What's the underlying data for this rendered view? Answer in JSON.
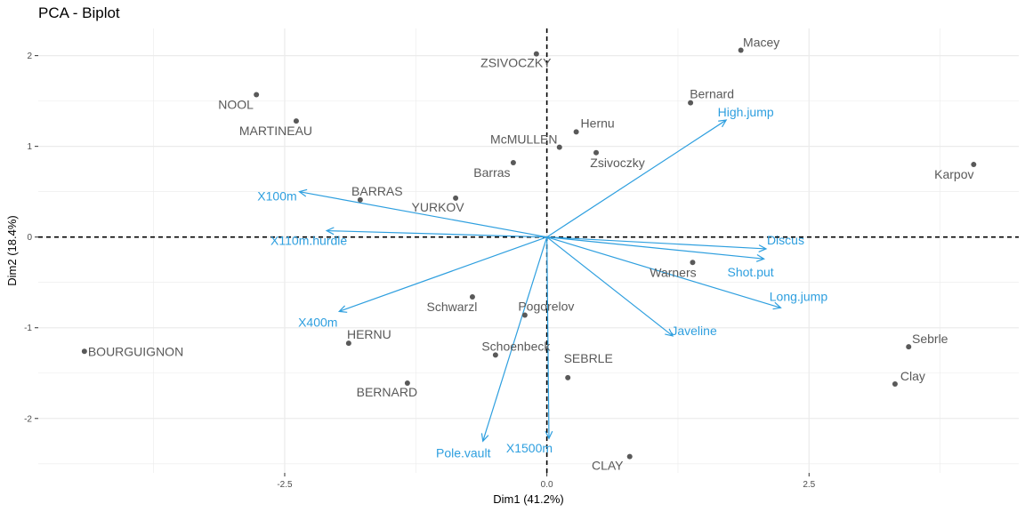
{
  "title": "PCA - Biplot",
  "chart_data": {
    "type": "scatter",
    "title": "PCA - Biplot",
    "xlabel": "Dim1 (41.2%)",
    "ylabel": "Dim2 (18.4%)",
    "xlim": [
      -4.85,
      4.5
    ],
    "ylim": [
      -2.6,
      2.3
    ],
    "x_ticks": [
      -2.5,
      0,
      2.5
    ],
    "x_tick_labels": [
      "-2.5",
      "0.0",
      "2.5"
    ],
    "y_ticks": [
      -2,
      -1,
      0,
      1,
      2
    ],
    "y_tick_labels": [
      "-2",
      "-1",
      "0",
      "1",
      "2"
    ],
    "grid": true,
    "colors": {
      "individuals": "#595959",
      "variables": "#2E9FDF",
      "reference_lines": "#000000",
      "grid": "#ebebeb"
    },
    "individuals": [
      {
        "name": "SEBRLE",
        "x": 0.2,
        "y": -1.55
      },
      {
        "name": "CLAY",
        "x": 0.79,
        "y": -2.42
      },
      {
        "name": "BERNARD",
        "x": -1.33,
        "y": -1.61
      },
      {
        "name": "YURKOV",
        "x": -0.87,
        "y": 0.43
      },
      {
        "name": "ZSIVOCZKY",
        "x": -0.1,
        "y": 2.02
      },
      {
        "name": "McMULLEN",
        "x": 0.12,
        "y": 0.99
      },
      {
        "name": "MARTINEAU",
        "x": -2.39,
        "y": 1.28
      },
      {
        "name": "HERNU",
        "x": -1.89,
        "y": -1.17
      },
      {
        "name": "BARRAS",
        "x": -1.78,
        "y": 0.41
      },
      {
        "name": "NOOL",
        "x": -2.77,
        "y": 1.57
      },
      {
        "name": "BOURGUIGNON",
        "x": -4.41,
        "y": -1.26
      },
      {
        "name": "Sebrle",
        "x": 3.45,
        "y": -1.21
      },
      {
        "name": "Clay",
        "x": 3.32,
        "y": -1.62
      },
      {
        "name": "Karpov",
        "x": 4.07,
        "y": 0.8
      },
      {
        "name": "Macey",
        "x": 1.85,
        "y": 2.06
      },
      {
        "name": "Warners",
        "x": 1.39,
        "y": -0.28
      },
      {
        "name": "Zsivoczky",
        "x": 0.47,
        "y": 0.93
      },
      {
        "name": "Hernu",
        "x": 0.28,
        "y": 1.16
      },
      {
        "name": "Bernard",
        "x": 1.37,
        "y": 1.48
      },
      {
        "name": "Schwarzl",
        "x": -0.71,
        "y": -0.66
      },
      {
        "name": "Pogorelov",
        "x": -0.21,
        "y": -0.86
      },
      {
        "name": "Schoenbeck",
        "x": -0.49,
        "y": -1.3
      },
      {
        "name": "Barras",
        "x": -0.32,
        "y": 0.82
      }
    ],
    "variables": [
      {
        "name": "X100m",
        "x": -2.36,
        "y": 0.5
      },
      {
        "name": "Long.jump",
        "x": 2.23,
        "y": -0.78
      },
      {
        "name": "Shot.put",
        "x": 2.07,
        "y": -0.24
      },
      {
        "name": "High.jump",
        "x": 1.71,
        "y": 1.29
      },
      {
        "name": "X400m",
        "x": -1.98,
        "y": -0.82
      },
      {
        "name": "X110m.hurdle",
        "x": -2.1,
        "y": 0.07
      },
      {
        "name": "Discus",
        "x": 2.09,
        "y": -0.13
      },
      {
        "name": "Pole.vault",
        "x": -0.61,
        "y": -2.25
      },
      {
        "name": "Javeline",
        "x": 1.2,
        "y": -1.09
      },
      {
        "name": "X1500m",
        "x": 0.02,
        "y": -2.22
      }
    ]
  }
}
